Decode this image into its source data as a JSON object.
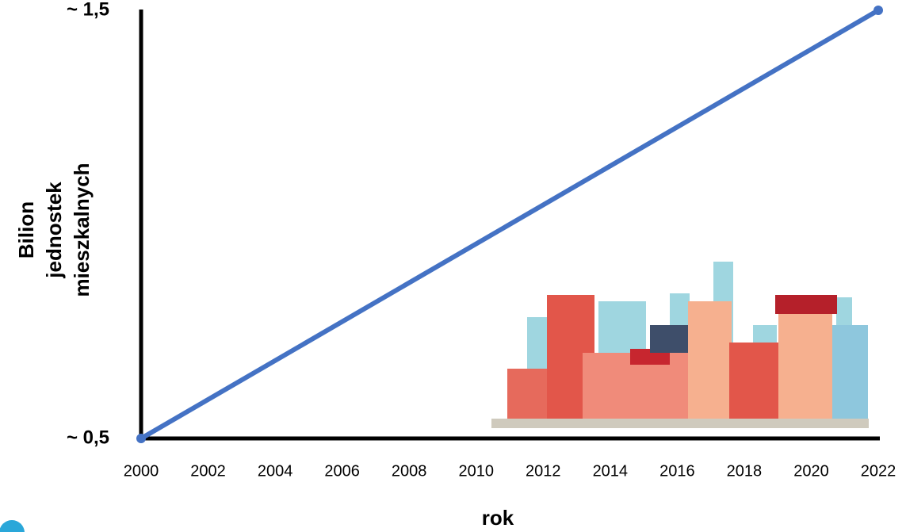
{
  "chart_data": {
    "type": "line",
    "x": [
      2000,
      2022
    ],
    "series": [
      {
        "color": "#4472c4",
        "values": [
          0.5,
          1.5
        ]
      }
    ],
    "xlim": [
      2000,
      2022
    ],
    "xticks": [
      2000,
      2002,
      2004,
      2006,
      2008,
      2010,
      2012,
      2014,
      2016,
      2018,
      2020,
      2022
    ],
    "ylim": [
      0.5,
      1.5
    ],
    "yticks": [
      {
        "value": 0.5,
        "label": "~ 0,5"
      },
      {
        "value": 1.5,
        "label": "~ 1,5"
      }
    ],
    "x_label": "rok",
    "y_label": [
      "Bilion",
      "jednostek",
      "mieszkalnych"
    ],
    "grid": false
  }
}
